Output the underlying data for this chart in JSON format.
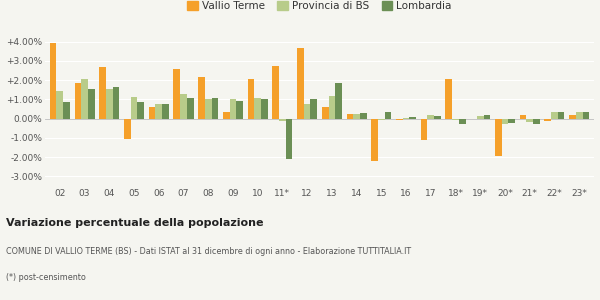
{
  "categories": [
    "02",
    "03",
    "04",
    "05",
    "06",
    "07",
    "08",
    "09",
    "10",
    "11*",
    "12",
    "13",
    "14",
    "15",
    "16",
    "17",
    "18*",
    "19*",
    "20*",
    "21*",
    "22*",
    "23*"
  ],
  "vallio": [
    3.9,
    1.85,
    2.7,
    -1.05,
    0.6,
    2.55,
    2.15,
    0.35,
    2.05,
    2.75,
    3.65,
    0.6,
    0.25,
    -2.2,
    -0.05,
    -1.1,
    2.05,
    0.0,
    -1.95,
    0.2,
    -0.15,
    0.2
  ],
  "provincia": [
    1.45,
    2.05,
    1.55,
    1.1,
    0.75,
    1.3,
    1.0,
    1.0,
    1.05,
    -0.1,
    0.75,
    1.15,
    0.25,
    -0.05,
    0.05,
    0.2,
    -0.05,
    0.15,
    -0.3,
    -0.2,
    0.35,
    0.35
  ],
  "lombardia": [
    0.85,
    1.55,
    1.65,
    0.85,
    0.75,
    1.05,
    1.05,
    0.9,
    1.0,
    -2.1,
    1.0,
    1.85,
    0.3,
    0.35,
    0.1,
    0.15,
    -0.3,
    0.2,
    -0.25,
    -0.3,
    0.35,
    0.35
  ],
  "color_vallio": "#f5a02a",
  "color_provincia": "#b8cc8a",
  "color_lombardia": "#6b8f55",
  "title": "Variazione percentuale della popolazione",
  "subtitle": "COMUNE DI VALLIO TERME (BS) - Dati ISTAT al 31 dicembre di ogni anno - Elaborazione TUTTITALIA.IT",
  "footnote": "(*) post-censimento",
  "ylim": [
    -3.5,
    4.6
  ],
  "yticks": [
    -3.0,
    -2.0,
    -1.0,
    0.0,
    1.0,
    2.0,
    3.0,
    4.0
  ],
  "ytick_labels": [
    "-3.00%",
    "-2.00%",
    "-1.00%",
    "0.00%",
    "+1.00%",
    "+2.00%",
    "+3.00%",
    "+4.00%"
  ],
  "bg_color": "#f5f5f0",
  "legend_labels": [
    "Vallio Terme",
    "Provincia di BS",
    "Lombardia"
  ],
  "bar_width": 0.27
}
